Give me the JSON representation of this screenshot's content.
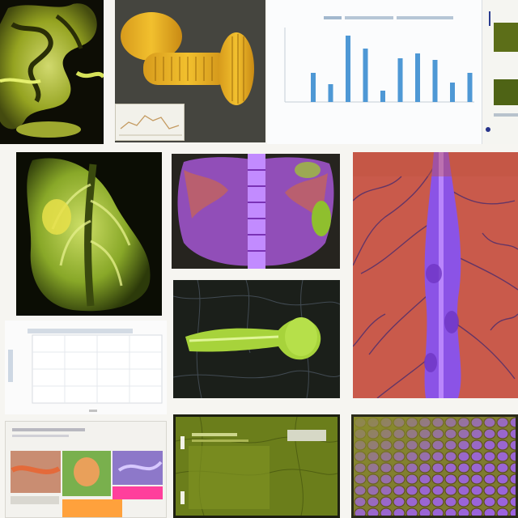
{
  "palette": {
    "background": "#f6f5f1",
    "dark": "#111111",
    "yellow_green": "#a9bf2b",
    "lime": "#8fc132",
    "purple": "#8c4be3",
    "violet": "#a067ff",
    "red": "#c85b4d",
    "olive": "#657719",
    "chart_bar_blue": "#4e98d5"
  },
  "tiles": [
    {
      "id": "skeleton-top-left",
      "kind": "image"
    },
    {
      "id": "mushroom-specimen",
      "kind": "image"
    },
    {
      "id": "bar-chart-document",
      "kind": "chart"
    },
    {
      "id": "right-edge-fragment",
      "kind": "image"
    },
    {
      "id": "green-skeleton-specimen",
      "kind": "image"
    },
    {
      "id": "purple-spine-specimen",
      "kind": "image"
    },
    {
      "id": "red-vein-specimen",
      "kind": "image"
    },
    {
      "id": "green-branch-specimen",
      "kind": "image"
    },
    {
      "id": "line-chart-document",
      "kind": "chart"
    },
    {
      "id": "collage-sheet",
      "kind": "image"
    },
    {
      "id": "olive-document",
      "kind": "image"
    },
    {
      "id": "cell-texture",
      "kind": "image"
    }
  ]
}
